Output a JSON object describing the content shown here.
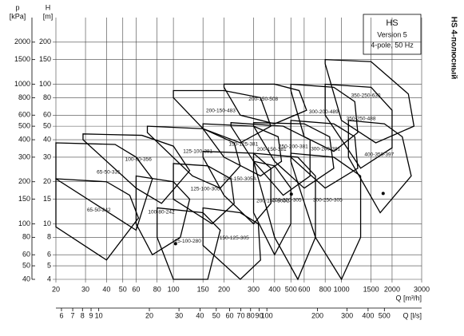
{
  "chart_data": {
    "type": "line",
    "title": "HS",
    "subtitle": [
      "Version 5",
      "4-pole, 50 Hz"
    ],
    "side_title": "HS 4-полюсный",
    "ylabel": "H",
    "yunit": "[m]",
    "y2label": "p",
    "y2unit": "[kPa]",
    "xlabel": "Q [m³/h]",
    "x2label": "Q [l/s]",
    "log_x": true,
    "log_y": true,
    "grid": true,
    "xlim": [
      20,
      3000
    ],
    "xticks": [
      20,
      30,
      40,
      50,
      60,
      80,
      100,
      150,
      200,
      300,
      400,
      500,
      600,
      800,
      1000,
      1500,
      2000,
      3000
    ],
    "x2lim": [
      5.56,
      833.33
    ],
    "x2ticks": [
      6,
      7,
      8,
      9,
      10,
      20,
      30,
      40,
      50,
      60,
      70,
      80,
      90,
      100,
      200,
      300,
      400,
      500
    ],
    "ylim": [
      4,
      300
    ],
    "yticks": [
      4,
      5,
      6,
      8,
      10,
      15,
      20,
      30,
      40,
      50,
      60,
      80,
      100,
      150,
      200
    ],
    "y2lim": [
      40,
      3000
    ],
    "y2ticks": [
      40,
      50,
      60,
      80,
      100,
      150,
      200,
      300,
      400,
      500,
      600,
      800,
      1000,
      1500,
      2000
    ],
    "color": "#000000",
    "series": [
      {
        "name": "65-50-331",
        "x": [
          20,
          45,
          60,
          75,
          60,
          20
        ],
        "values": [
          38,
          37,
          30,
          21,
          9,
          21
        ]
      },
      {
        "name": "65-50-242",
        "x": [
          20,
          40,
          55,
          62,
          40,
          20
        ],
        "values": [
          21,
          20,
          16,
          11,
          5.5,
          9.5
        ]
      },
      {
        "name": "100-80-356",
        "x": [
          29,
          65,
          100,
          125,
          85,
          60,
          29
        ],
        "values": [
          44,
          43,
          36,
          24,
          14,
          18,
          40
        ]
      },
      {
        "name": "100-80-242",
        "x": [
          60,
          100,
          125,
          110,
          75,
          60
        ],
        "values": [
          22,
          20,
          15,
          8,
          6,
          10
        ]
      },
      {
        "name": "125-100-381",
        "x": [
          70,
          150,
          230,
          250,
          190,
          130,
          70
        ],
        "values": [
          50,
          48,
          38,
          26,
          18,
          22,
          45
        ]
      },
      {
        "name": "125-100-305",
        "x": [
          100,
          160,
          220,
          230,
          170,
          100
        ],
        "values": [
          27,
          26,
          21,
          14,
          10,
          15
        ]
      },
      {
        "name": "150-125-305",
        "x": [
          150,
          250,
          320,
          330,
          250,
          150
        ],
        "values": [
          13,
          12,
          10,
          5.5,
          4,
          7
        ]
      },
      {
        "name": "125-100-280",
        "x": [
          80,
          150,
          190,
          160,
          100,
          80
        ],
        "values": [
          13,
          12,
          9,
          4,
          4,
          8
        ]
      },
      {
        "name": "200-150-483",
        "x": [
          100,
          200,
          330,
          380,
          250,
          150,
          100
        ],
        "values": [
          90,
          90,
          80,
          50,
          38,
          48,
          80
        ]
      },
      {
        "name": "200-150-508",
        "x": [
          200,
          400,
          560,
          620,
          400,
          250,
          200
        ],
        "values": [
          100,
          100,
          90,
          65,
          52,
          60,
          95
        ]
      },
      {
        "name": "150-125-381",
        "x": [
          150,
          300,
          420,
          440,
          330,
          200,
          150
        ],
        "values": [
          52,
          50,
          42,
          28,
          22,
          30,
          48
        ]
      },
      {
        "name": "200-150-305A",
        "x": [
          150,
          300,
          380,
          380,
          300,
          200,
          150
        ],
        "values": [
          33,
          32,
          25,
          14,
          10,
          16,
          30
        ]
      },
      {
        "name": "200-150-305C",
        "x": [
          300,
          400,
          500,
          500,
          400,
          300
        ],
        "values": [
          28,
          26,
          18,
          10,
          6,
          12
        ]
      },
      {
        "name": "200-150-381",
        "x": [
          220,
          450,
          650,
          650,
          450,
          300,
          220
        ],
        "values": [
          53,
          50,
          40,
          22,
          16,
          28,
          50
        ]
      },
      {
        "name": "250-200-381",
        "x": [
          300,
          600,
          850,
          900,
          600,
          400,
          300
        ],
        "values": [
          53,
          52,
          42,
          25,
          18,
          28,
          50
        ]
      },
      {
        "name": "300-200-489",
        "x": [
          500,
          900,
          1200,
          1250,
          900,
          600,
          500
        ],
        "values": [
          100,
          95,
          75,
          45,
          33,
          42,
          90
        ]
      },
      {
        "name": "300-200-381",
        "x": [
          500,
          900,
          1200,
          1250,
          800,
          500
        ],
        "values": [
          55,
          52,
          42,
          25,
          18,
          30
        ]
      },
      {
        "name": "350-250-630",
        "x": [
          800,
          1500,
          2500,
          2700,
          1600,
          1000,
          800
        ],
        "values": [
          150,
          145,
          85,
          50,
          38,
          55,
          140
        ]
      },
      {
        "name": "350-250-488",
        "x": [
          800,
          1500,
          2000,
          2000,
          1300,
          800
        ],
        "values": [
          100,
          95,
          65,
          35,
          25,
          60
        ]
      },
      {
        "name": "250-200-305",
        "x": [
          300,
          550,
          700,
          700,
          550,
          400,
          300
        ],
        "values": [
          32,
          30,
          22,
          8,
          4,
          8,
          28
        ]
      },
      {
        "name": "300-250-305",
        "x": [
          500,
          900,
          1300,
          1300,
          1000,
          700,
          500
        ],
        "values": [
          32,
          30,
          22,
          8,
          4,
          8,
          28
        ]
      },
      {
        "name": "400-350-397",
        "x": [
          1100,
          1800,
          2300,
          2600,
          1700,
          1100
        ],
        "values": [
          55,
          52,
          42,
          22,
          12,
          30
        ]
      }
    ],
    "markers": {
      "x": [
        503,
        103,
        1770
      ],
      "values": [
        16.3,
        7.2,
        16.5
      ]
    }
  }
}
